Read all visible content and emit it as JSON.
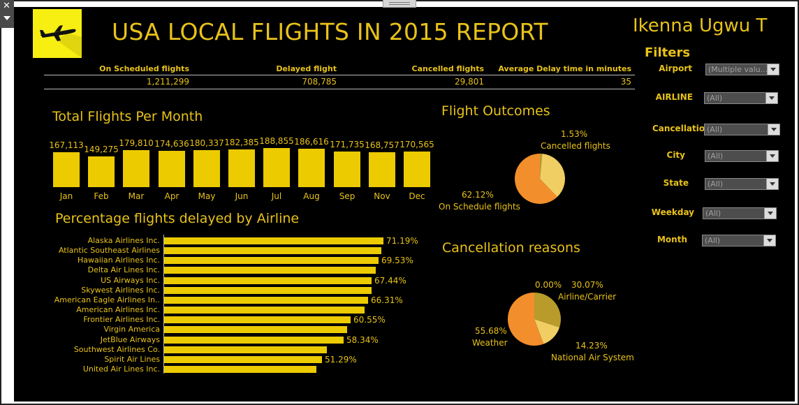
{
  "header": {
    "title": "USA LOCAL FLIGHTS IN 2015 REPORT",
    "author": "Ikenna Ugwu T"
  },
  "kpis": [
    {
      "label": "On Scheduled flights",
      "value": "1,211,299"
    },
    {
      "label": "Delayed flight",
      "value": "708,785"
    },
    {
      "label": "Cancelled flights",
      "value": "29,801"
    },
    {
      "label": "Average Delay time in minutes",
      "value": "35"
    }
  ],
  "filters": {
    "title": "Filters",
    "items": [
      {
        "label": "Airport",
        "value": "(Multiple valu..."
      },
      {
        "label": "AIRLINE",
        "value": "(All)"
      },
      {
        "label": "Cancellatio..",
        "value": "(All)"
      },
      {
        "label": "City",
        "value": "(All)"
      },
      {
        "label": "State",
        "value": "(All)"
      },
      {
        "label": "Weekday",
        "value": "(All)"
      },
      {
        "label": "Month",
        "value": "(All)"
      }
    ]
  },
  "sections": {
    "monthly": "Total Flights Per Month",
    "airline": "Percentage flights delayed by Airline",
    "outcomes": "Flight Outcomes",
    "cancellation": "Cancellation reasons"
  },
  "colors": {
    "background": "#000000",
    "accent": "#e8c21a",
    "bar": "#eccb00",
    "logo_bg": "#f7ee12",
    "pie_orange": "#f28e2b",
    "pie_light": "#f1ce63",
    "pie_olive": "#b89b2b"
  },
  "chart_data": [
    {
      "type": "bar",
      "title": "Total Flights Per Month",
      "categories": [
        "Jan",
        "Feb",
        "Mar",
        "Apr",
        "May",
        "Jun",
        "Jul",
        "Aug",
        "Sep",
        "Nov",
        "Dec"
      ],
      "values": [
        167113,
        149275,
        179810,
        174636,
        180337,
        182385,
        188855,
        186616,
        171735,
        168757,
        170565
      ],
      "value_labels": [
        "167,113",
        "149,275",
        "179,810",
        "174,636",
        "180,337",
        "182,385",
        "188,855",
        "186,616",
        "171,735",
        "168,757",
        "170,565"
      ]
    },
    {
      "type": "bar",
      "orientation": "horizontal",
      "title": "Percentage flights delayed by Airline",
      "categories": [
        "Alaska Airlines Inc.",
        "Atlantic Southeast Airlines",
        "Hawaiian Airlines Inc.",
        "Delta Air Lines Inc.",
        "US Airways Inc.",
        "Skywest Airlines Inc.",
        "American Eagle Airlines In..",
        "American Airlines Inc.",
        "Frontier Airlines Inc.",
        "Virgin America",
        "JetBlue Airways",
        "Southwest Airlines Co.",
        "Spirit Air Lines",
        "United Air Lines Inc."
      ],
      "values": [
        71.19,
        70.6,
        69.53,
        68.7,
        67.44,
        67.3,
        66.31,
        65.1,
        60.55,
        59.4,
        58.34,
        52.8,
        51.29,
        49.5
      ],
      "value_labels": [
        "71.19%",
        "",
        "69.53%",
        "",
        "67.44%",
        "",
        "66.31%",
        "",
        "60.55%",
        "",
        "58.34%",
        "",
        "51.29%",
        ""
      ]
    },
    {
      "type": "pie",
      "title": "Flight Outcomes",
      "slices": [
        {
          "label": "On Schedule flights",
          "value": 62.12,
          "pct": "62.12%"
        },
        {
          "label": "Delayed flights",
          "value": 36.35,
          "pct": ""
        },
        {
          "label": "Cancelled flights",
          "value": 1.53,
          "pct": "1.53%"
        }
      ]
    },
    {
      "type": "pie",
      "title": "Cancellation reasons",
      "slices": [
        {
          "label": "Airline/Carrier",
          "value": 30.07,
          "pct": "30.07%"
        },
        {
          "label": "National Air System",
          "value": 14.23,
          "pct": "14.23%"
        },
        {
          "label": "Weather",
          "value": 55.68,
          "pct": "55.68%"
        },
        {
          "label": "",
          "value": 0.0,
          "pct": "0.00%"
        }
      ]
    }
  ]
}
